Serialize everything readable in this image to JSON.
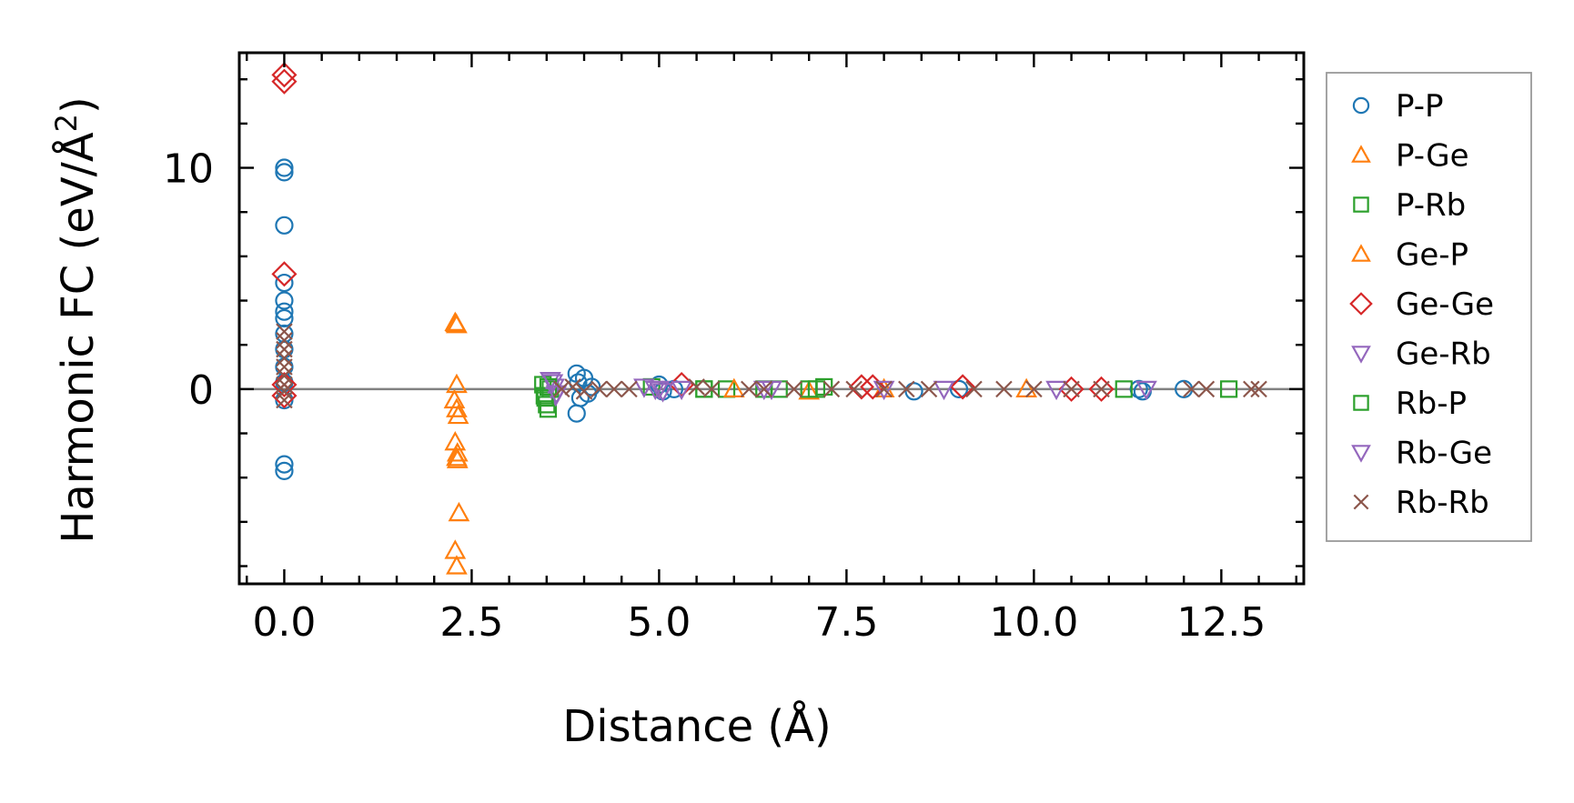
{
  "chart_data": {
    "type": "scatter",
    "title": "",
    "xlabel": "Distance (Å)",
    "ylabel_main": "Harmonic FC (eV/Å",
    "ylabel_sup": "2",
    "ylabel_close": ")",
    "xlim": [
      -0.6,
      13.6
    ],
    "ylim": [
      -8.8,
      15.2
    ],
    "xticks": [
      0.0,
      2.5,
      5.0,
      7.5,
      10.0,
      12.5
    ],
    "xtick_labels": [
      "0.0",
      "2.5",
      "5.0",
      "7.5",
      "10.0",
      "12.5"
    ],
    "yticks": [
      0,
      10
    ],
    "ytick_labels": [
      "0",
      "10"
    ],
    "x_minor_step": 0.5,
    "y_minor_step": 2,
    "zero_line": true,
    "legend_position": "outside-right",
    "series": [
      {
        "name": "P-P",
        "marker": "circle",
        "color": "#1f77b4",
        "points": [
          [
            0,
            10.0
          ],
          [
            0,
            9.8
          ],
          [
            0,
            7.4
          ],
          [
            0,
            4.8
          ],
          [
            0,
            4.0
          ],
          [
            0,
            3.5
          ],
          [
            0,
            3.2
          ],
          [
            0,
            2.5
          ],
          [
            0,
            1.8
          ],
          [
            0,
            1.0
          ],
          [
            0,
            0.3
          ],
          [
            0,
            -0.5
          ],
          [
            0,
            -3.4
          ],
          [
            0,
            -3.7
          ],
          [
            3.9,
            0.7
          ],
          [
            3.92,
            0.3
          ],
          [
            3.95,
            -0.4
          ],
          [
            3.9,
            -1.1
          ],
          [
            4.0,
            0.5
          ],
          [
            4.05,
            -0.2
          ],
          [
            4.1,
            0.1
          ],
          [
            5.0,
            0.2
          ],
          [
            5.05,
            -0.1
          ],
          [
            5.2,
            0.0
          ],
          [
            8.4,
            -0.1
          ],
          [
            9.0,
            0.0
          ],
          [
            11.4,
            0.0
          ],
          [
            11.45,
            -0.1
          ],
          [
            12.0,
            0.0
          ]
        ]
      },
      {
        "name": "P-Ge",
        "marker": "triangle-up",
        "color": "#ff7f0e",
        "points": [
          [
            2.28,
            3.0
          ],
          [
            2.3,
            2.9
          ],
          [
            2.3,
            0.2
          ],
          [
            2.27,
            -0.5
          ],
          [
            2.3,
            -0.9
          ],
          [
            2.32,
            -1.2
          ],
          [
            2.28,
            -2.4
          ],
          [
            2.3,
            -3.1
          ],
          [
            2.31,
            -3.2
          ],
          [
            2.33,
            -5.6
          ],
          [
            2.28,
            -7.3
          ],
          [
            2.3,
            -8.0
          ],
          [
            7.0,
            -0.1
          ],
          [
            8.0,
            0.0
          ]
        ]
      },
      {
        "name": "P-Rb",
        "marker": "square",
        "color": "#2ca02c",
        "points": [
          [
            3.45,
            0.2
          ],
          [
            3.47,
            -0.3
          ],
          [
            3.5,
            -0.7
          ],
          [
            3.52,
            -0.9
          ],
          [
            3.55,
            0.0
          ],
          [
            4.9,
            0.1
          ],
          [
            5.6,
            0.0
          ],
          [
            5.9,
            0.0
          ],
          [
            6.4,
            0.0
          ],
          [
            6.6,
            0.0
          ],
          [
            7.0,
            0.0
          ],
          [
            7.2,
            0.1
          ],
          [
            11.2,
            0.0
          ],
          [
            12.6,
            0.0
          ]
        ]
      },
      {
        "name": "Ge-P",
        "marker": "triangle-up",
        "color": "#ff7f0e",
        "points": [
          [
            2.29,
            2.95
          ],
          [
            2.31,
            -2.9
          ],
          [
            6.0,
            0.0
          ],
          [
            9.9,
            0.0
          ]
        ]
      },
      {
        "name": "Ge-Ge",
        "marker": "diamond",
        "color": "#d62728",
        "points": [
          [
            0,
            14.2
          ],
          [
            0,
            13.9
          ],
          [
            0,
            5.2
          ],
          [
            0,
            0.2
          ],
          [
            0,
            -0.3
          ],
          [
            5.3,
            0.2
          ],
          [
            7.7,
            0.1
          ],
          [
            7.85,
            0.1
          ],
          [
            9.05,
            0.1
          ],
          [
            10.5,
            0.0
          ],
          [
            10.9,
            0.0
          ]
        ]
      },
      {
        "name": "Ge-Rb",
        "marker": "triangle-down",
        "color": "#9467bd",
        "points": [
          [
            3.55,
            0.4
          ],
          [
            3.6,
            0.1
          ],
          [
            3.62,
            -0.3
          ],
          [
            4.8,
            0.1
          ],
          [
            4.95,
            0.0
          ],
          [
            5.05,
            -0.1
          ],
          [
            5.3,
            0.0
          ],
          [
            6.4,
            0.0
          ],
          [
            8.0,
            0.0
          ],
          [
            8.8,
            0.0
          ],
          [
            10.3,
            0.0
          ],
          [
            11.5,
            0.0
          ]
        ]
      },
      {
        "name": "Rb-P",
        "marker": "square",
        "color": "#2ca02c",
        "points": [
          [
            3.48,
            -0.4
          ],
          [
            3.52,
            0.1
          ],
          [
            5.6,
            0.0
          ],
          [
            7.1,
            0.0
          ]
        ]
      },
      {
        "name": "Rb-Ge",
        "marker": "triangle-down",
        "color": "#9467bd",
        "points": [
          [
            3.58,
            0.3
          ],
          [
            3.63,
            -0.2
          ],
          [
            5.0,
            0.0
          ],
          [
            6.5,
            0.0
          ]
        ]
      },
      {
        "name": "Rb-Rb",
        "marker": "x",
        "color": "#8c564b",
        "points": [
          [
            0,
            2.6
          ],
          [
            0,
            2.2
          ],
          [
            0,
            1.8
          ],
          [
            0,
            1.4
          ],
          [
            0,
            1.0
          ],
          [
            0,
            0.6
          ],
          [
            0,
            0.2
          ],
          [
            0,
            -0.1
          ],
          [
            0,
            -0.5
          ],
          [
            3.7,
            0.0
          ],
          [
            3.85,
            0.1
          ],
          [
            4.0,
            -0.1
          ],
          [
            4.2,
            0.0
          ],
          [
            4.4,
            0.0
          ],
          [
            4.6,
            0.0
          ],
          [
            5.5,
            0.1
          ],
          [
            5.7,
            0.0
          ],
          [
            6.2,
            0.0
          ],
          [
            6.4,
            0.0
          ],
          [
            6.8,
            0.0
          ],
          [
            7.3,
            0.0
          ],
          [
            7.6,
            0.0
          ],
          [
            8.0,
            0.0
          ],
          [
            8.3,
            0.0
          ],
          [
            8.6,
            0.0
          ],
          [
            9.2,
            0.0
          ],
          [
            9.6,
            0.0
          ],
          [
            10.0,
            0.0
          ],
          [
            10.5,
            0.0
          ],
          [
            10.9,
            0.0
          ],
          [
            12.1,
            0.0
          ],
          [
            12.3,
            0.0
          ],
          [
            12.9,
            0.0
          ],
          [
            13.0,
            0.0
          ]
        ]
      }
    ]
  }
}
